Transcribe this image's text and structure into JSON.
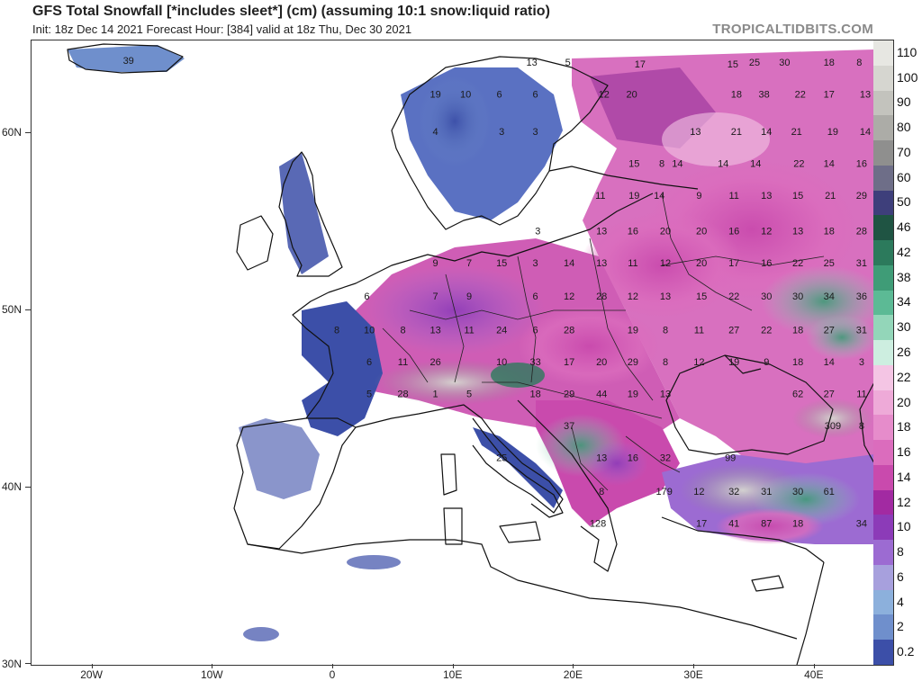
{
  "header": {
    "title": "GFS Total Snowfall [*includes sleet*] (cm) (assuming 10:1 snow:liquid ratio)",
    "subtitle": "Init: 18z Dec 14 2021   Forecast Hour: [384]   valid at 18z Thu, Dec 30 2021",
    "brand": "TROPICALTIDBITS.COM"
  },
  "axes": {
    "lat_labels": [
      {
        "text": "60N",
        "lat": 60
      },
      {
        "text": "50N",
        "lat": 50
      },
      {
        "text": "40N",
        "lat": 40
      },
      {
        "text": "30N",
        "lat": 30
      }
    ],
    "lon_labels": [
      {
        "text": "20W",
        "lon": -20
      },
      {
        "text": "10W",
        "lon": -10
      },
      {
        "text": "0",
        "lon": 0
      },
      {
        "text": "10E",
        "lon": 10
      },
      {
        "text": "20E",
        "lon": 20
      },
      {
        "text": "30E",
        "lon": 30
      },
      {
        "text": "40E",
        "lon": 40
      }
    ]
  },
  "legend": {
    "levels": [
      {
        "label": "110",
        "color": "#e7e7e2"
      },
      {
        "label": "100",
        "color": "#d6d6d0"
      },
      {
        "label": "90",
        "color": "#c3c3bd"
      },
      {
        "label": "80",
        "color": "#acaca7"
      },
      {
        "label": "70",
        "color": "#8f8f8e"
      },
      {
        "label": "60",
        "color": "#6e6e88"
      },
      {
        "label": "50",
        "color": "#3e3f7b"
      },
      {
        "label": "46",
        "color": "#1f5443"
      },
      {
        "label": "42",
        "color": "#2c7a5c"
      },
      {
        "label": "38",
        "color": "#3f9c77"
      },
      {
        "label": "34",
        "color": "#5cba95"
      },
      {
        "label": "30",
        "color": "#93d6b9"
      },
      {
        "label": "26",
        "color": "#cdeee0"
      },
      {
        "label": "22",
        "color": "#f4c5e4"
      },
      {
        "label": "20",
        "color": "#eeaad8"
      },
      {
        "label": "18",
        "color": "#e68ccb"
      },
      {
        "label": "16",
        "color": "#db6cbd"
      },
      {
        "label": "14",
        "color": "#c94aad"
      },
      {
        "label": "12",
        "color": "#a22aa2"
      },
      {
        "label": "10",
        "color": "#8c3bb8"
      },
      {
        "label": "8",
        "color": "#9c6bd2"
      },
      {
        "label": "6",
        "color": "#a7a0dd"
      },
      {
        "label": "4",
        "color": "#8cb0dc"
      },
      {
        "label": "2",
        "color": "#6f8fcc"
      },
      {
        "label": "0.2",
        "color": "#3c4fa8"
      }
    ]
  },
  "amounts": [
    {
      "v": "39",
      "lon": -17.0,
      "lat": 64.1
    },
    {
      "v": "13",
      "lon": 16.5,
      "lat": 64.0
    },
    {
      "v": "5",
      "lon": 19.5,
      "lat": 64.0
    },
    {
      "v": "17",
      "lon": 25.5,
      "lat": 63.9
    },
    {
      "v": "15",
      "lon": 33.2,
      "lat": 63.9
    },
    {
      "v": "25",
      "lon": 35.0,
      "lat": 64.0
    },
    {
      "v": "30",
      "lon": 37.5,
      "lat": 64.0
    },
    {
      "v": "18",
      "lon": 41.2,
      "lat": 64.0
    },
    {
      "v": "8",
      "lon": 43.7,
      "lat": 64.0
    },
    {
      "v": "19",
      "lon": 8.5,
      "lat": 62.2
    },
    {
      "v": "10",
      "lon": 11.0,
      "lat": 62.2
    },
    {
      "v": "6",
      "lon": 13.8,
      "lat": 62.2
    },
    {
      "v": "6",
      "lon": 16.8,
      "lat": 62.2
    },
    {
      "v": "12",
      "lon": 22.5,
      "lat": 62.2
    },
    {
      "v": "20",
      "lon": 24.8,
      "lat": 62.2
    },
    {
      "v": "18",
      "lon": 33.5,
      "lat": 62.2
    },
    {
      "v": "38",
      "lon": 35.8,
      "lat": 62.2
    },
    {
      "v": "22",
      "lon": 38.8,
      "lat": 62.2
    },
    {
      "v": "17",
      "lon": 41.2,
      "lat": 62.2
    },
    {
      "v": "13",
      "lon": 44.2,
      "lat": 62.2
    },
    {
      "v": "4",
      "lon": 8.5,
      "lat": 60.1
    },
    {
      "v": "3",
      "lon": 14.0,
      "lat": 60.1
    },
    {
      "v": "3",
      "lon": 16.8,
      "lat": 60.1
    },
    {
      "v": "13",
      "lon": 30.1,
      "lat": 60.1
    },
    {
      "v": "21",
      "lon": 33.5,
      "lat": 60.1
    },
    {
      "v": "14",
      "lon": 36.0,
      "lat": 60.1
    },
    {
      "v": "21",
      "lon": 38.5,
      "lat": 60.1
    },
    {
      "v": "19",
      "lon": 41.5,
      "lat": 60.1
    },
    {
      "v": "14",
      "lon": 44.2,
      "lat": 60.1
    },
    {
      "v": "15",
      "lon": 25.0,
      "lat": 58.3
    },
    {
      "v": "8",
      "lon": 27.3,
      "lat": 58.3
    },
    {
      "v": "14",
      "lon": 28.6,
      "lat": 58.3
    },
    {
      "v": "14",
      "lon": 32.4,
      "lat": 58.3
    },
    {
      "v": "14",
      "lon": 35.1,
      "lat": 58.3
    },
    {
      "v": "22",
      "lon": 38.7,
      "lat": 58.3
    },
    {
      "v": "14",
      "lon": 41.2,
      "lat": 58.3
    },
    {
      "v": "16",
      "lon": 43.9,
      "lat": 58.3
    },
    {
      "v": "11",
      "lon": 22.2,
      "lat": 56.5
    },
    {
      "v": "19",
      "lon": 25.0,
      "lat": 56.5
    },
    {
      "v": "14",
      "lon": 27.1,
      "lat": 56.5
    },
    {
      "v": "9",
      "lon": 30.4,
      "lat": 56.5
    },
    {
      "v": "11",
      "lon": 33.3,
      "lat": 56.5
    },
    {
      "v": "13",
      "lon": 36.0,
      "lat": 56.5
    },
    {
      "v": "15",
      "lon": 38.6,
      "lat": 56.5
    },
    {
      "v": "21",
      "lon": 41.3,
      "lat": 56.5
    },
    {
      "v": "29",
      "lon": 43.9,
      "lat": 56.5
    },
    {
      "v": "3",
      "lon": 17.0,
      "lat": 54.5
    },
    {
      "v": "13",
      "lon": 22.3,
      "lat": 54.5
    },
    {
      "v": "16",
      "lon": 24.9,
      "lat": 54.5
    },
    {
      "v": "20",
      "lon": 27.6,
      "lat": 54.5
    },
    {
      "v": "20",
      "lon": 30.6,
      "lat": 54.5
    },
    {
      "v": "16",
      "lon": 33.3,
      "lat": 54.5
    },
    {
      "v": "12",
      "lon": 36.0,
      "lat": 54.5
    },
    {
      "v": "13",
      "lon": 38.6,
      "lat": 54.5
    },
    {
      "v": "18",
      "lon": 41.2,
      "lat": 54.5
    },
    {
      "v": "28",
      "lon": 43.9,
      "lat": 54.5
    },
    {
      "v": "9",
      "lon": 8.5,
      "lat": 52.7
    },
    {
      "v": "7",
      "lon": 11.3,
      "lat": 52.7
    },
    {
      "v": "15",
      "lon": 14.0,
      "lat": 52.7
    },
    {
      "v": "3",
      "lon": 16.8,
      "lat": 52.7
    },
    {
      "v": "14",
      "lon": 19.6,
      "lat": 52.7
    },
    {
      "v": "13",
      "lon": 22.3,
      "lat": 52.7
    },
    {
      "v": "11",
      "lon": 24.9,
      "lat": 52.7
    },
    {
      "v": "12",
      "lon": 27.6,
      "lat": 52.7
    },
    {
      "v": "20",
      "lon": 30.6,
      "lat": 52.7
    },
    {
      "v": "17",
      "lon": 33.3,
      "lat": 52.7
    },
    {
      "v": "16",
      "lon": 36.0,
      "lat": 52.7
    },
    {
      "v": "22",
      "lon": 38.6,
      "lat": 52.7
    },
    {
      "v": "25",
      "lon": 41.2,
      "lat": 52.7
    },
    {
      "v": "31",
      "lon": 43.9,
      "lat": 52.7
    },
    {
      "v": "6",
      "lon": 2.8,
      "lat": 50.8
    },
    {
      "v": "7",
      "lon": 8.5,
      "lat": 50.8
    },
    {
      "v": "9",
      "lon": 11.3,
      "lat": 50.8
    },
    {
      "v": "6",
      "lon": 16.8,
      "lat": 50.8
    },
    {
      "v": "12",
      "lon": 19.6,
      "lat": 50.8
    },
    {
      "v": "28",
      "lon": 22.3,
      "lat": 50.8
    },
    {
      "v": "12",
      "lon": 24.9,
      "lat": 50.8
    },
    {
      "v": "13",
      "lon": 27.6,
      "lat": 50.8
    },
    {
      "v": "15",
      "lon": 30.6,
      "lat": 50.8
    },
    {
      "v": "22",
      "lon": 33.3,
      "lat": 50.8
    },
    {
      "v": "30",
      "lon": 36.0,
      "lat": 50.8
    },
    {
      "v": "30",
      "lon": 38.6,
      "lat": 50.8
    },
    {
      "v": "34",
      "lon": 41.2,
      "lat": 50.8
    },
    {
      "v": "36",
      "lon": 43.9,
      "lat": 50.8
    },
    {
      "v": "8",
      "lon": 0.3,
      "lat": 48.9
    },
    {
      "v": "10",
      "lon": 3.0,
      "lat": 48.9
    },
    {
      "v": "8",
      "lon": 5.8,
      "lat": 48.9
    },
    {
      "v": "13",
      "lon": 8.5,
      "lat": 48.9
    },
    {
      "v": "11",
      "lon": 11.3,
      "lat": 48.9
    },
    {
      "v": "24",
      "lon": 14.0,
      "lat": 48.9
    },
    {
      "v": "6",
      "lon": 16.8,
      "lat": 48.9
    },
    {
      "v": "28",
      "lon": 19.6,
      "lat": 48.9
    },
    {
      "v": "19",
      "lon": 24.9,
      "lat": 48.9
    },
    {
      "v": "8",
      "lon": 27.6,
      "lat": 48.9
    },
    {
      "v": "11",
      "lon": 30.4,
      "lat": 48.9
    },
    {
      "v": "27",
      "lon": 33.3,
      "lat": 48.9
    },
    {
      "v": "22",
      "lon": 36.0,
      "lat": 48.9
    },
    {
      "v": "18",
      "lon": 38.6,
      "lat": 48.9
    },
    {
      "v": "27",
      "lon": 41.2,
      "lat": 48.9
    },
    {
      "v": "31",
      "lon": 43.9,
      "lat": 48.9
    },
    {
      "v": "6",
      "lon": 3.0,
      "lat": 47.1
    },
    {
      "v": "11",
      "lon": 5.8,
      "lat": 47.1
    },
    {
      "v": "26",
      "lon": 8.5,
      "lat": 47.1
    },
    {
      "v": "10",
      "lon": 14.0,
      "lat": 47.1
    },
    {
      "v": "33",
      "lon": 16.8,
      "lat": 47.1
    },
    {
      "v": "17",
      "lon": 19.6,
      "lat": 47.1
    },
    {
      "v": "20",
      "lon": 22.3,
      "lat": 47.1
    },
    {
      "v": "29",
      "lon": 24.9,
      "lat": 47.1
    },
    {
      "v": "8",
      "lon": 27.6,
      "lat": 47.1
    },
    {
      "v": "12",
      "lon": 30.4,
      "lat": 47.1
    },
    {
      "v": "19",
      "lon": 33.3,
      "lat": 47.1
    },
    {
      "v": "9",
      "lon": 36.0,
      "lat": 47.1
    },
    {
      "v": "18",
      "lon": 38.6,
      "lat": 47.1
    },
    {
      "v": "14",
      "lon": 41.2,
      "lat": 47.1
    },
    {
      "v": "3",
      "lon": 43.9,
      "lat": 47.1
    },
    {
      "v": "5",
      "lon": 3.0,
      "lat": 45.3
    },
    {
      "v": "28",
      "lon": 5.8,
      "lat": 45.3
    },
    {
      "v": "1",
      "lon": 8.5,
      "lat": 45.3
    },
    {
      "v": "5",
      "lon": 11.3,
      "lat": 45.3
    },
    {
      "v": "18",
      "lon": 16.8,
      "lat": 45.3
    },
    {
      "v": "29",
      "lon": 19.6,
      "lat": 45.3
    },
    {
      "v": "44",
      "lon": 22.3,
      "lat": 45.3
    },
    {
      "v": "19",
      "lon": 24.9,
      "lat": 45.3
    },
    {
      "v": "13",
      "lon": 27.6,
      "lat": 45.3
    },
    {
      "v": "62",
      "lon": 38.6,
      "lat": 45.3
    },
    {
      "v": "27",
      "lon": 41.2,
      "lat": 45.3
    },
    {
      "v": "11",
      "lon": 43.9,
      "lat": 45.3
    },
    {
      "v": "37",
      "lon": 19.6,
      "lat": 43.5
    },
    {
      "v": "309",
      "lon": 41.5,
      "lat": 43.5
    },
    {
      "v": "8",
      "lon": 43.9,
      "lat": 43.5
    },
    {
      "v": "25",
      "lon": 14.0,
      "lat": 41.7
    },
    {
      "v": "13",
      "lon": 22.3,
      "lat": 41.7
    },
    {
      "v": "16",
      "lon": 24.9,
      "lat": 41.7
    },
    {
      "v": "32",
      "lon": 27.6,
      "lat": 41.7
    },
    {
      "v": "99",
      "lon": 33.0,
      "lat": 41.7
    },
    {
      "v": "8",
      "lon": 22.3,
      "lat": 39.8
    },
    {
      "v": "179",
      "lon": 27.5,
      "lat": 39.8
    },
    {
      "v": "12",
      "lon": 30.4,
      "lat": 39.8
    },
    {
      "v": "32",
      "lon": 33.3,
      "lat": 39.8
    },
    {
      "v": "31",
      "lon": 36.0,
      "lat": 39.8
    },
    {
      "v": "30",
      "lon": 38.6,
      "lat": 39.8
    },
    {
      "v": "61",
      "lon": 41.2,
      "lat": 39.8
    },
    {
      "v": "128",
      "lon": 22.0,
      "lat": 38.0
    },
    {
      "v": "17",
      "lon": 30.6,
      "lat": 38.0
    },
    {
      "v": "41",
      "lon": 33.3,
      "lat": 38.0
    },
    {
      "v": "87",
      "lon": 36.0,
      "lat": 38.0
    },
    {
      "v": "18",
      "lon": 38.6,
      "lat": 38.0
    },
    {
      "v": "34",
      "lon": 43.9,
      "lat": 38.0
    }
  ]
}
